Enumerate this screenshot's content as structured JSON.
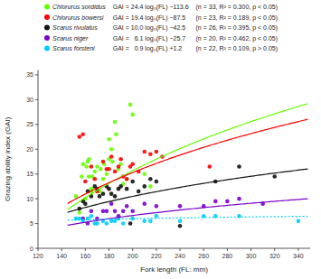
{
  "chart_data": {
    "type": "scatter",
    "xlabel": "Fork length (FL: mm)",
    "ylabel": "Grazing ability index (GAI)",
    "xlim": [
      120,
      350
    ],
    "ylim": [
      0,
      36
    ],
    "xticks": [
      120,
      140,
      160,
      180,
      200,
      220,
      240,
      260,
      280,
      300,
      320,
      340
    ],
    "yticks": [
      0,
      5,
      10,
      15,
      20,
      25,
      30,
      35
    ],
    "grid": false,
    "legend": "top",
    "series": [
      {
        "name": "Chlorurus sordidus",
        "color": "#66ff00",
        "line_style": "solid",
        "equation": "GAI = 24.4 logₙ(FL) −113.6",
        "stats": "(n = 33, R² = 0.300, p < 0.05)",
        "fit": {
          "a": 24.4,
          "b": -113.6,
          "x": [
            145,
            348
          ]
        },
        "x": [
          152,
          155,
          157,
          158,
          160,
          161,
          162,
          163,
          163,
          165,
          165,
          166,
          168,
          170,
          172,
          173,
          175,
          176,
          178,
          180,
          180,
          182,
          183,
          185,
          186,
          188,
          190,
          192,
          195,
          198,
          200,
          210,
          215
        ],
        "values": [
          10.5,
          7.2,
          14.5,
          17.0,
          10.0,
          16.5,
          17.5,
          14.5,
          18.0,
          12.0,
          11.5,
          14.5,
          15.5,
          16.5,
          11.5,
          16.0,
          14.0,
          17.0,
          15.0,
          18.0,
          22.0,
          20.0,
          17.5,
          25.5,
          23.0,
          16.0,
          17.0,
          13.0,
          14.0,
          29.0,
          27.0,
          15.0,
          12.5
        ]
      },
      {
        "name": "Chlorurus bowersi",
        "color": "#ff0000",
        "line_style": "solid",
        "equation": "GAI = 19.4 logₙ(FL) −87.5",
        "stats": "(n = 23, R² = 0.189, p < 0.05)",
        "fit": {
          "a": 19.4,
          "b": -87.5,
          "x": [
            145,
            348
          ]
        },
        "x": [
          155,
          158,
          160,
          165,
          168,
          170,
          175,
          178,
          180,
          182,
          185,
          188,
          190,
          192,
          195,
          198,
          200,
          205,
          210,
          215,
          220,
          225,
          265
        ],
        "values": [
          22.5,
          23.0,
          13.5,
          16.5,
          14.0,
          11.5,
          17.5,
          16.0,
          16.0,
          18.5,
          15.5,
          16.5,
          18.0,
          14.5,
          14.0,
          16.5,
          17.0,
          15.5,
          19.5,
          19.0,
          19.5,
          18.5,
          16.5
        ]
      },
      {
        "name": "Scarus rivulatus",
        "color": "#111111",
        "line_style": "solid",
        "equation": "GAI = 10.0 logₙ(FL) −42.5",
        "stats": "(n = 26, R² = 0.395, p < 0.05)",
        "fit": {
          "a": 10.0,
          "b": -42.5,
          "x": [
            145,
            348
          ]
        },
        "x": [
          155,
          158,
          160,
          162,
          165,
          168,
          170,
          172,
          175,
          178,
          180,
          182,
          185,
          188,
          190,
          195,
          198,
          200,
          205,
          210,
          215,
          220,
          240,
          270,
          290,
          320
        ],
        "values": [
          8.0,
          9.5,
          9.0,
          11.5,
          10.5,
          12.5,
          12.0,
          10.5,
          11.0,
          12.5,
          12.0,
          11.0,
          10.5,
          12.0,
          12.5,
          12.0,
          5.0,
          13.5,
          11.5,
          12.5,
          14.0,
          13.5,
          4.5,
          13.5,
          16.5,
          14.5
        ]
      },
      {
        "name": "Scarus niger",
        "color": "#7b00cc",
        "line_style": "solid",
        "equation": "GAI =   6.1 logₙ(FL) −25.7",
        "stats": "(n = 20, R² = 0.462, p < 0.05)",
        "fit": {
          "a": 6.1,
          "b": -25.7,
          "x": [
            145,
            348
          ]
        },
        "x": [
          158,
          162,
          165,
          170,
          175,
          178,
          182,
          185,
          188,
          192,
          195,
          200,
          210,
          220,
          240,
          260,
          270,
          280,
          290,
          310
        ],
        "values": [
          6.0,
          5.0,
          7.5,
          6.0,
          7.5,
          7.5,
          9.0,
          7.5,
          6.5,
          7.5,
          8.5,
          7.5,
          9.0,
          8.5,
          8.5,
          8.5,
          9.5,
          9.5,
          10.0,
          9.0
        ]
      },
      {
        "name": "Scarus forsteni",
        "color": "#00ccff",
        "line_style": "dotted",
        "equation": "GAI =   0.9 logₙ(FL) +1.2",
        "stats": "(n = 22, R² = 0.109, p > 0.05)",
        "fit": {
          "a": 0.9,
          "b": 1.2,
          "x": [
            145,
            348
          ]
        },
        "x": [
          152,
          155,
          158,
          162,
          165,
          168,
          170,
          175,
          178,
          182,
          185,
          188,
          192,
          200,
          210,
          215,
          220,
          240,
          260,
          270,
          290,
          340
        ],
        "values": [
          6.0,
          6.0,
          5.5,
          6.0,
          6.5,
          5.0,
          5.0,
          5.5,
          5.0,
          5.5,
          5.5,
          6.0,
          5.0,
          6.0,
          5.5,
          5.5,
          6.5,
          5.5,
          6.5,
          6.5,
          6.5,
          5.5
        ]
      }
    ]
  }
}
